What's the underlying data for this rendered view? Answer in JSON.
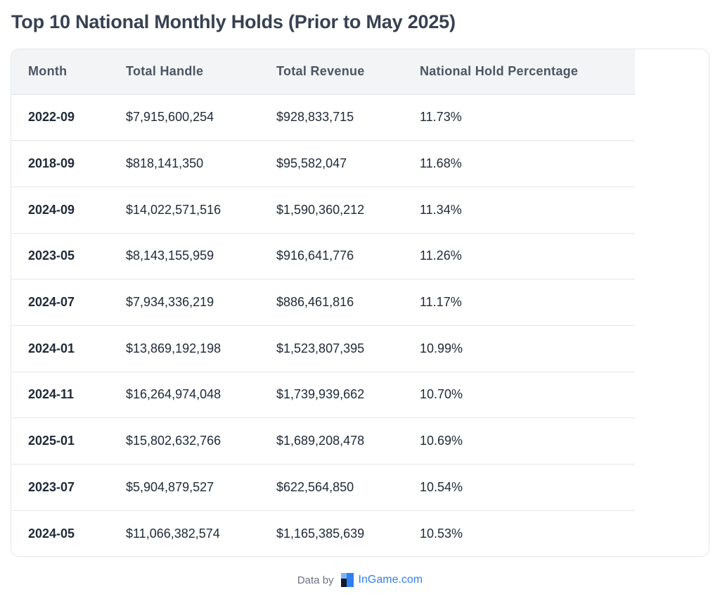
{
  "title": "Top 10 National Monthly Holds (Prior to May 2025)",
  "table": {
    "headers": [
      "Month",
      "Total Handle",
      "Total Revenue",
      "National Hold Percentage"
    ],
    "rows": [
      [
        "2022-09",
        "$7,915,600,254",
        "$928,833,715",
        "11.73%"
      ],
      [
        "2018-09",
        "$818,141,350",
        "$95,582,047",
        "11.68%"
      ],
      [
        "2024-09",
        "$14,022,571,516",
        "$1,590,360,212",
        "11.34%"
      ],
      [
        "2023-05",
        "$8,143,155,959",
        "$916,641,776",
        "11.26%"
      ],
      [
        "2024-07",
        "$7,934,336,219",
        "$886,461,816",
        "11.17%"
      ],
      [
        "2024-01",
        "$13,869,192,198",
        "$1,523,807,395",
        "10.99%"
      ],
      [
        "2024-11",
        "$16,264,974,048",
        "$1,739,939,662",
        "10.70%"
      ],
      [
        "2025-01",
        "$15,802,632,766",
        "$1,689,208,478",
        "10.69%"
      ],
      [
        "2023-07",
        "$5,904,879,527",
        "$622,564,850",
        "10.54%"
      ],
      [
        "2024-05",
        "$11,066,382,574",
        "$1,165,385,639",
        "10.53%"
      ]
    ]
  },
  "footer": {
    "prefix": "Data by",
    "brand": "InGame.com",
    "logo_icon": "ingame-logo-icon"
  },
  "colors": {
    "brand": "#2f80ed",
    "header_bg": "#f3f4f6",
    "border": "#e5e7eb"
  }
}
